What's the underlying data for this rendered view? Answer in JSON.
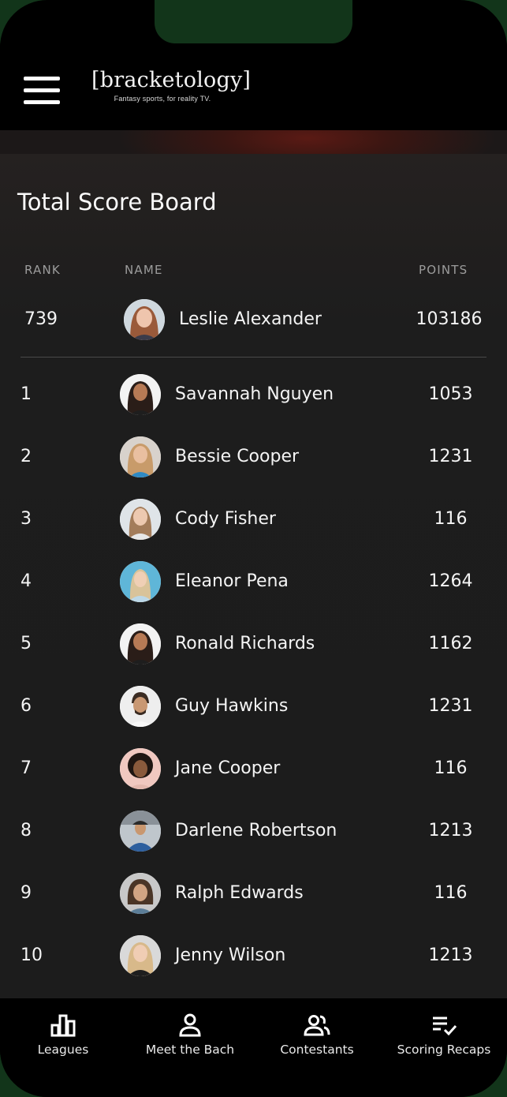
{
  "header": {
    "logo_text": "[bracketology]",
    "tagline": "Fantasy sports, for reality TV."
  },
  "board": {
    "title": "Total Score Board",
    "columns": {
      "rank": "RANK",
      "name": "NAME",
      "points": "POINTS"
    },
    "current_user": {
      "rank": "739",
      "name": "Leslie Alexander",
      "points": "103186"
    },
    "rows": [
      {
        "rank": "1",
        "name": "Savannah Nguyen",
        "points": "1053"
      },
      {
        "rank": "2",
        "name": "Bessie Cooper",
        "points": "1231"
      },
      {
        "rank": "3",
        "name": "Cody Fisher",
        "points": "116"
      },
      {
        "rank": "4",
        "name": "Eleanor Pena",
        "points": "1264"
      },
      {
        "rank": "5",
        "name": "Ronald Richards",
        "points": "1162"
      },
      {
        "rank": "6",
        "name": "Guy Hawkins",
        "points": "1231"
      },
      {
        "rank": "7",
        "name": "Jane Cooper",
        "points": "116"
      },
      {
        "rank": "8",
        "name": "Darlene Robertson",
        "points": "1213"
      },
      {
        "rank": "9",
        "name": "Ralph Edwards",
        "points": "116"
      },
      {
        "rank": "10",
        "name": "Jenny Wilson",
        "points": "1213"
      }
    ]
  },
  "nav": {
    "items": [
      {
        "label": "Leagues",
        "icon": "bar-chart-icon"
      },
      {
        "label": "Meet the Bach",
        "icon": "person-icon"
      },
      {
        "label": "Contestants",
        "icon": "people-icon"
      },
      {
        "label": "Scoring Recaps",
        "icon": "checklist-icon"
      }
    ]
  },
  "colors": {
    "background": "#000000",
    "board": "#1c1c1c",
    "text": "#ffffff",
    "muted": "#9c9c9c",
    "banner_accent": "#5a1a14"
  }
}
